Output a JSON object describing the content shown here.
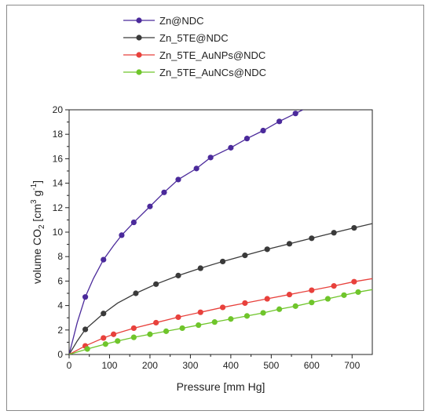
{
  "chart_data": {
    "type": "line",
    "title": "",
    "xlabel": "Pressure [mm Hg]",
    "ylabel": {
      "prefix": "volume CO",
      "sub": "2",
      "unit_open": " [cm",
      "sup1": "3",
      "unit_mid": " g",
      "sup2": "-1",
      "unit_close": "]"
    },
    "xlim": [
      0,
      750
    ],
    "ylim": [
      0,
      20
    ],
    "xticks": [
      0,
      100,
      200,
      300,
      400,
      500,
      600,
      700
    ],
    "yticks": [
      0,
      2,
      4,
      6,
      8,
      10,
      12,
      14,
      16,
      18,
      20
    ],
    "legend_position": "top-left",
    "grid": false,
    "series": [
      {
        "name": "Zn@NDC",
        "color": "#4b2a9b",
        "x": [
          40,
          85,
          130,
          160,
          200,
          235,
          270,
          315,
          350,
          400,
          440,
          480,
          520,
          560
        ],
        "y": [
          4.7,
          7.75,
          9.75,
          10.8,
          12.1,
          13.25,
          14.3,
          15.2,
          16.1,
          16.9,
          17.65,
          18.3,
          19.05,
          19.7
        ],
        "line_x": [
          0,
          20,
          40,
          60,
          85,
          110,
          130,
          160,
          200,
          235,
          270,
          315,
          350,
          400,
          440,
          480,
          520,
          560,
          578
        ],
        "line_y": [
          0,
          2.6,
          4.7,
          6.2,
          7.75,
          8.9,
          9.75,
          10.8,
          12.1,
          13.25,
          14.3,
          15.2,
          16.1,
          16.9,
          17.65,
          18.3,
          19.05,
          19.7,
          20.0
        ]
      },
      {
        "name": "Zn_5TE@NDC",
        "color": "#3a3a3a",
        "x": [
          40,
          85,
          165,
          215,
          270,
          325,
          380,
          435,
          490,
          545,
          600,
          655,
          705
        ],
        "y": [
          2.05,
          3.35,
          5.0,
          5.75,
          6.45,
          7.05,
          7.6,
          8.1,
          8.6,
          9.05,
          9.5,
          9.95,
          10.35
        ],
        "line_x": [
          0,
          20,
          40,
          85,
          120,
          165,
          215,
          270,
          325,
          380,
          435,
          490,
          545,
          600,
          655,
          705,
          750
        ],
        "line_y": [
          0,
          1.1,
          2.05,
          3.35,
          4.2,
          5.0,
          5.75,
          6.45,
          7.05,
          7.6,
          8.1,
          8.6,
          9.05,
          9.5,
          9.95,
          10.35,
          10.7
        ]
      },
      {
        "name": "Zn_5TE_AuNPs@NDC",
        "color": "#e8413c",
        "x": [
          40,
          85,
          110,
          160,
          215,
          270,
          325,
          380,
          435,
          490,
          545,
          600,
          655,
          705
        ],
        "y": [
          0.7,
          1.35,
          1.65,
          2.15,
          2.6,
          3.05,
          3.45,
          3.85,
          4.2,
          4.55,
          4.9,
          5.25,
          5.6,
          5.95
        ],
        "line_x": [
          0,
          40,
          85,
          110,
          160,
          215,
          270,
          325,
          380,
          435,
          490,
          545,
          600,
          655,
          705,
          750
        ],
        "line_y": [
          0,
          0.7,
          1.35,
          1.65,
          2.15,
          2.6,
          3.05,
          3.45,
          3.85,
          4.2,
          4.55,
          4.9,
          5.25,
          5.6,
          5.95,
          6.2
        ]
      },
      {
        "name": "Zn_5TE_AuNCs@NDC",
        "color": "#6fc52b",
        "x": [
          45,
          90,
          120,
          160,
          200,
          240,
          280,
          320,
          360,
          400,
          440,
          480,
          520,
          560,
          600,
          640,
          680,
          715
        ],
        "y": [
          0.45,
          0.85,
          1.1,
          1.4,
          1.65,
          1.9,
          2.15,
          2.4,
          2.65,
          2.9,
          3.15,
          3.4,
          3.7,
          3.95,
          4.25,
          4.55,
          4.85,
          5.1
        ],
        "line_x": [
          0,
          45,
          90,
          120,
          160,
          200,
          240,
          280,
          320,
          360,
          400,
          440,
          480,
          520,
          560,
          600,
          640,
          680,
          715,
          750
        ],
        "line_y": [
          0,
          0.45,
          0.85,
          1.1,
          1.4,
          1.65,
          1.9,
          2.15,
          2.4,
          2.65,
          2.9,
          3.15,
          3.4,
          3.7,
          3.95,
          4.25,
          4.55,
          4.85,
          5.1,
          5.3
        ]
      }
    ]
  }
}
